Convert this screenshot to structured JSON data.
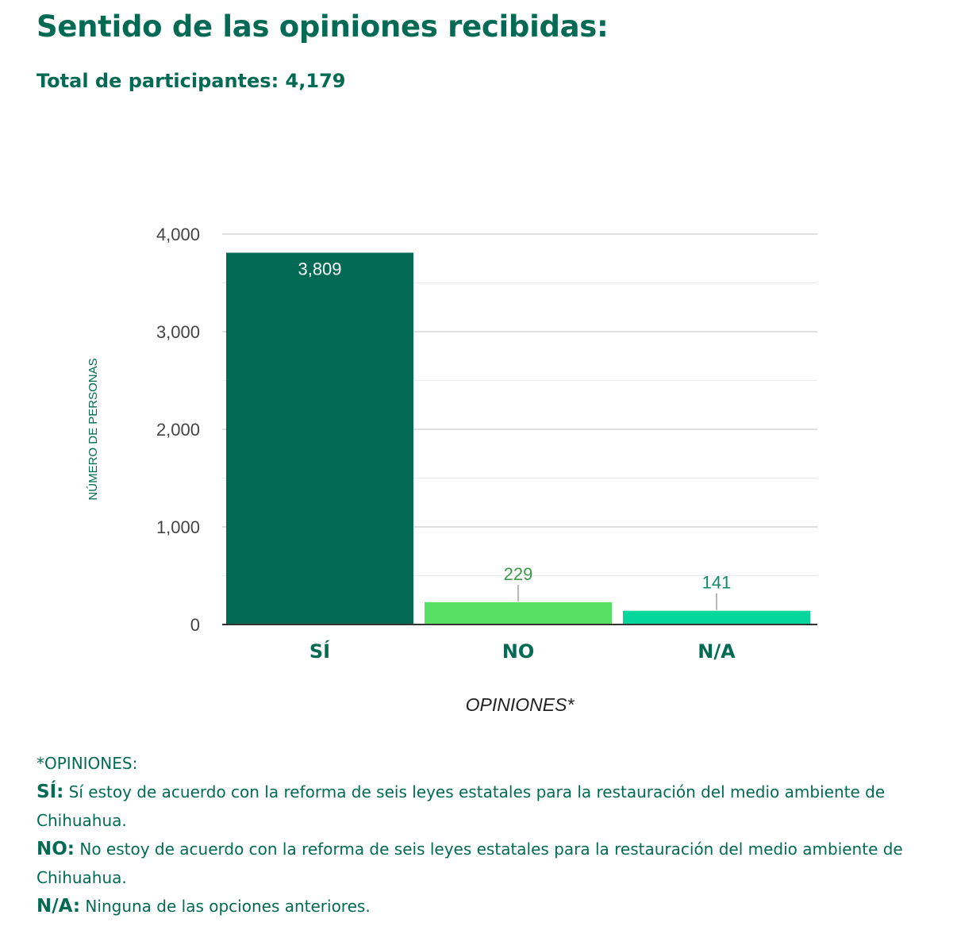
{
  "header": {
    "title": "Sentido de las opiniones recibidas:",
    "subtitle": "Total de participantes: 4,179"
  },
  "chart_data": {
    "type": "bar",
    "categories": [
      "SÍ",
      "NO",
      "N/A"
    ],
    "values": [
      3809,
      229,
      141
    ],
    "value_labels": [
      "3,809",
      "229",
      "141"
    ],
    "colors": [
      "#006a55",
      "#57e064",
      "#05d69c"
    ],
    "label_colors": [
      "#ffffff",
      "#3a9a48",
      "#0f8a6a"
    ],
    "xlabel": "OPINIONES*",
    "ylabel": "NÚMERO DE PERSONAS",
    "ylim": [
      0,
      4000
    ],
    "yticks": [
      0,
      1000,
      2000,
      3000,
      4000
    ],
    "ytick_labels": [
      "0",
      "1,000",
      "2,000",
      "3,000",
      "4,000"
    ],
    "grid": true
  },
  "notes": {
    "heading": "*OPINIONES:",
    "items": [
      {
        "key": "SÍ:",
        "text": " Sí estoy de acuerdo con la reforma de seis leyes estatales para la restauración del medio ambiente de Chihuahua."
      },
      {
        "key": "NO:",
        "text": " No estoy de acuerdo con la reforma de seis leyes estatales para la restauración del medio ambiente de Chihuahua."
      },
      {
        "key": "N/A:",
        "text": " Ninguna de las opciones anteriores."
      }
    ]
  }
}
